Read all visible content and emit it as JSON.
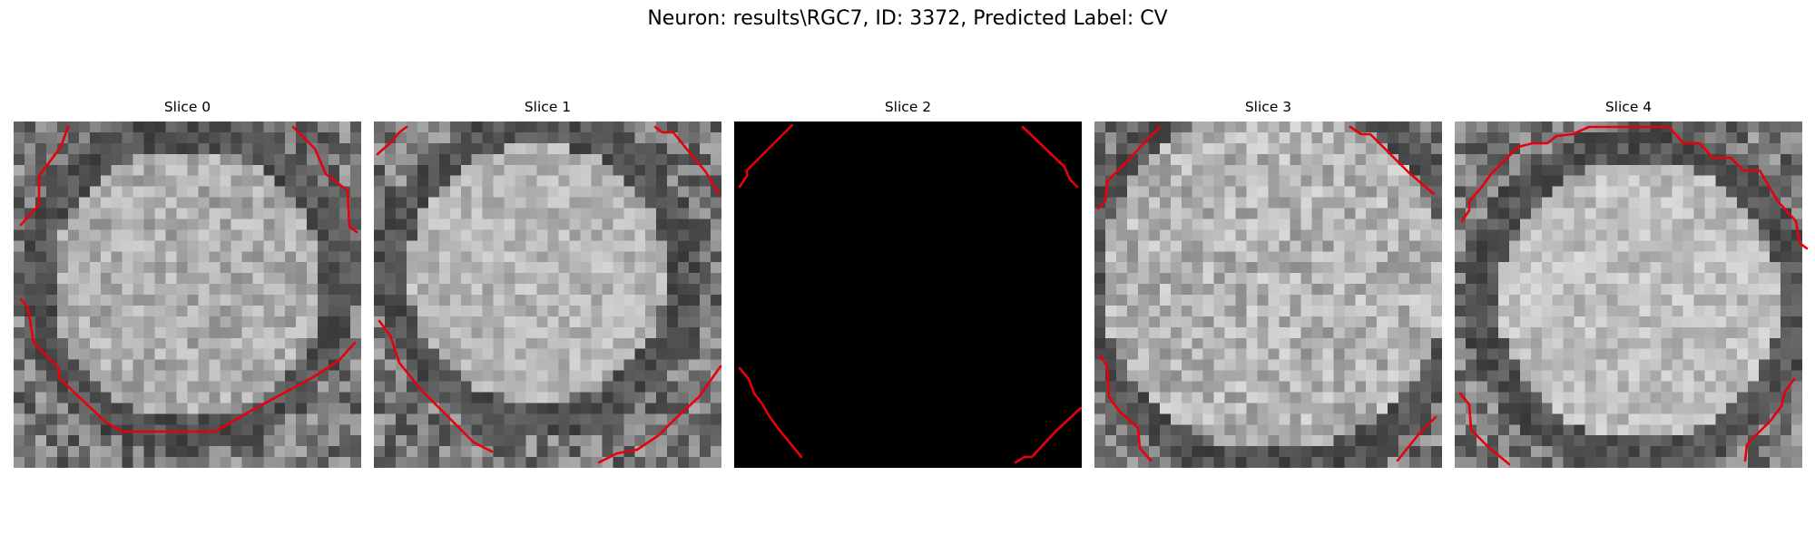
{
  "figure": {
    "title": "Neuron: results\\RGC7, ID: 3372, Predicted Label: CV"
  },
  "contour_color": "#e8000b",
  "slices": [
    {
      "title": "Slice 0",
      "image": "grayscale-cell-crop",
      "contour": "cell-boundary"
    },
    {
      "title": "Slice 1",
      "image": "grayscale-cell-crop",
      "contour": "cell-boundary"
    },
    {
      "title": "Slice 2",
      "image": "blank-black",
      "contour": "cell-boundary"
    },
    {
      "title": "Slice 3",
      "image": "grayscale-cell-crop",
      "contour": "cell-boundary"
    },
    {
      "title": "Slice 4",
      "image": "grayscale-cell-crop",
      "contour": "cell-boundary"
    }
  ]
}
